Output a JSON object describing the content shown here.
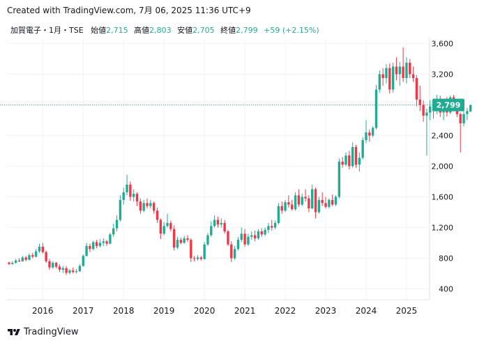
{
  "header": {
    "title": "Created with TradingView.com, 7月 06, 2025 11:36 UTC+9"
  },
  "legend": {
    "symbol": "加賀電子・1月・TSE",
    "open_label": "始値",
    "open": "2,715",
    "high_label": "高値",
    "high": "2,803",
    "low_label": "安値",
    "low": "2,705",
    "close_label": "終値",
    "close": "2,799",
    "change": "+59 (+2.15%)"
  },
  "footer": {
    "brand": "TradingView"
  },
  "colors": {
    "up": "#22ab94",
    "down": "#f23645",
    "grid": "#f0f3fa",
    "text": "#131722"
  },
  "chart_data": {
    "type": "candlestick",
    "interval": "monthly",
    "last_price_label": "2,799",
    "last_price": 2799,
    "y_ticks": [
      400,
      800,
      1200,
      1600,
      2000,
      2400,
      2800,
      3200,
      3600
    ],
    "y_tick_labels": [
      "400",
      "800",
      "1,200",
      "1,600",
      "2,000",
      "2,400",
      "2,800",
      "3,200",
      "3,600"
    ],
    "x_tick_labels": [
      "2016",
      "2017",
      "2018",
      "2019",
      "2020",
      "2021",
      "2022",
      "2023",
      "2024",
      "2025"
    ],
    "ylim": [
      200,
      3750
    ],
    "x_start": "2015-03",
    "candles": [
      [
        745,
        755,
        710,
        725
      ],
      [
        725,
        760,
        715,
        740
      ],
      [
        740,
        790,
        730,
        770
      ],
      [
        770,
        800,
        750,
        760
      ],
      [
        760,
        830,
        755,
        810
      ],
      [
        810,
        830,
        760,
        780
      ],
      [
        780,
        860,
        770,
        840
      ],
      [
        840,
        870,
        800,
        820
      ],
      [
        820,
        920,
        810,
        890
      ],
      [
        890,
        990,
        870,
        950
      ],
      [
        950,
        1000,
        860,
        880
      ],
      [
        880,
        900,
        740,
        760
      ],
      [
        760,
        790,
        650,
        680
      ],
      [
        680,
        760,
        660,
        740
      ],
      [
        740,
        750,
        670,
        690
      ],
      [
        690,
        720,
        620,
        650
      ],
      [
        650,
        700,
        610,
        670
      ],
      [
        670,
        700,
        580,
        610
      ],
      [
        610,
        660,
        590,
        640
      ],
      [
        640,
        680,
        600,
        620
      ],
      [
        620,
        660,
        600,
        630
      ],
      [
        630,
        720,
        620,
        700
      ],
      [
        700,
        850,
        690,
        830
      ],
      [
        830,
        1000,
        820,
        960
      ],
      [
        960,
        990,
        880,
        920
      ],
      [
        920,
        1030,
        900,
        1010
      ],
      [
        1010,
        1040,
        930,
        960
      ],
      [
        960,
        1050,
        940,
        1000
      ],
      [
        1000,
        1060,
        960,
        1020
      ],
      [
        1020,
        1040,
        960,
        990
      ],
      [
        990,
        1130,
        980,
        1110
      ],
      [
        1110,
        1250,
        1080,
        1190
      ],
      [
        1190,
        1360,
        1150,
        1300
      ],
      [
        1300,
        1620,
        1280,
        1560
      ],
      [
        1560,
        1720,
        1500,
        1660
      ],
      [
        1660,
        1890,
        1620,
        1760
      ],
      [
        1760,
        1800,
        1550,
        1600
      ],
      [
        1600,
        1700,
        1540,
        1640
      ],
      [
        1640,
        1660,
        1480,
        1540
      ],
      [
        1540,
        1580,
        1380,
        1420
      ],
      [
        1420,
        1560,
        1400,
        1520
      ],
      [
        1520,
        1580,
        1450,
        1480
      ],
      [
        1480,
        1560,
        1450,
        1520
      ],
      [
        1520,
        1540,
        1380,
        1420
      ],
      [
        1420,
        1460,
        1260,
        1300
      ],
      [
        1300,
        1320,
        1050,
        1120
      ],
      [
        1120,
        1270,
        1100,
        1220
      ],
      [
        1220,
        1380,
        1200,
        1260
      ],
      [
        1260,
        1290,
        1150,
        1180
      ],
      [
        1180,
        1230,
        900,
        940
      ],
      [
        940,
        1080,
        920,
        1040
      ],
      [
        1040,
        1070,
        980,
        1000
      ],
      [
        1000,
        1090,
        990,
        1060
      ],
      [
        1060,
        1100,
        1010,
        1040
      ],
      [
        1040,
        1060,
        750,
        800
      ],
      [
        800,
        830,
        760,
        790
      ],
      [
        790,
        840,
        770,
        810
      ],
      [
        810,
        830,
        770,
        790
      ],
      [
        790,
        1010,
        780,
        980
      ],
      [
        980,
        1130,
        960,
        1100
      ],
      [
        1100,
        1280,
        1080,
        1220
      ],
      [
        1220,
        1360,
        1200,
        1300
      ],
      [
        1300,
        1340,
        1200,
        1240
      ],
      [
        1240,
        1320,
        1200,
        1260
      ],
      [
        1260,
        1300,
        1120,
        1150
      ],
      [
        1150,
        1170,
        960,
        980
      ],
      [
        980,
        1020,
        750,
        800
      ],
      [
        800,
        960,
        780,
        920
      ],
      [
        920,
        1080,
        900,
        1040
      ],
      [
        1040,
        1200,
        1010,
        1120
      ],
      [
        1120,
        1180,
        950,
        980
      ],
      [
        980,
        1120,
        960,
        1080
      ],
      [
        1080,
        1150,
        1040,
        1100
      ],
      [
        1100,
        1160,
        1020,
        1060
      ],
      [
        1060,
        1180,
        1040,
        1150
      ],
      [
        1150,
        1190,
        1080,
        1110
      ],
      [
        1110,
        1200,
        1090,
        1170
      ],
      [
        1170,
        1260,
        1130,
        1220
      ],
      [
        1220,
        1300,
        1160,
        1200
      ],
      [
        1200,
        1290,
        1180,
        1260
      ],
      [
        1260,
        1520,
        1240,
        1480
      ],
      [
        1480,
        1540,
        1380,
        1420
      ],
      [
        1420,
        1560,
        1400,
        1530
      ],
      [
        1530,
        1620,
        1460,
        1500
      ],
      [
        1500,
        1560,
        1420,
        1440
      ],
      [
        1440,
        1660,
        1420,
        1620
      ],
      [
        1620,
        1700,
        1470,
        1500
      ],
      [
        1500,
        1640,
        1480,
        1600
      ],
      [
        1600,
        1700,
        1540,
        1580
      ],
      [
        1580,
        1620,
        1400,
        1450
      ],
      [
        1450,
        1760,
        1440,
        1700
      ],
      [
        1700,
        1720,
        1320,
        1400
      ],
      [
        1400,
        1600,
        1380,
        1560
      ],
      [
        1560,
        1660,
        1480,
        1520
      ],
      [
        1520,
        1600,
        1450,
        1470
      ],
      [
        1470,
        1580,
        1450,
        1560
      ],
      [
        1560,
        1630,
        1480,
        1500
      ],
      [
        1500,
        1620,
        1480,
        1600
      ],
      [
        1600,
        2100,
        1580,
        2060
      ],
      [
        2060,
        2120,
        1980,
        2020
      ],
      [
        2020,
        2180,
        2000,
        2140
      ],
      [
        2140,
        2200,
        1960,
        2000
      ],
      [
        2000,
        2310,
        1980,
        2250
      ],
      [
        2250,
        2280,
        1980,
        2020
      ],
      [
        2020,
        2180,
        1930,
        2110
      ],
      [
        2110,
        2380,
        2090,
        2340
      ],
      [
        2340,
        2600,
        2300,
        2440
      ],
      [
        2440,
        2480,
        2320,
        2400
      ],
      [
        2400,
        2520,
        2380,
        2500
      ],
      [
        2500,
        3060,
        2480,
        3000
      ],
      [
        3000,
        3250,
        2960,
        3200
      ],
      [
        3200,
        3280,
        3050,
        3150
      ],
      [
        3150,
        3330,
        3080,
        3280
      ],
      [
        3280,
        3340,
        2950,
        3000
      ],
      [
        3000,
        3350,
        2960,
        3300
      ],
      [
        3300,
        3420,
        3120,
        3200
      ],
      [
        3200,
        3360,
        3050,
        3300
      ],
      [
        3300,
        3550,
        3100,
        3150
      ],
      [
        3150,
        3420,
        3080,
        3350
      ],
      [
        3350,
        3400,
        3150,
        3200
      ],
      [
        3200,
        3300,
        3100,
        3150
      ],
      [
        3150,
        3190,
        2780,
        2870
      ],
      [
        2870,
        3050,
        2720,
        2800
      ],
      [
        2800,
        2860,
        2580,
        2660
      ],
      [
        2660,
        2750,
        2140,
        2700
      ],
      [
        2700,
        2860,
        2600,
        2780
      ],
      [
        2780,
        2880,
        2620,
        2720
      ],
      [
        2720,
        2930,
        2680,
        2880
      ],
      [
        2880,
        2920,
        2640,
        2700
      ],
      [
        2700,
        2850,
        2600,
        2800
      ],
      [
        2800,
        2900,
        2650,
        2700
      ],
      [
        2700,
        2920,
        2680,
        2900
      ],
      [
        2900,
        2930,
        2720,
        2750
      ],
      [
        2750,
        2800,
        2640,
        2680
      ],
      [
        2680,
        2700,
        2180,
        2560
      ],
      [
        2560,
        2720,
        2520,
        2680
      ],
      [
        2680,
        2760,
        2600,
        2720
      ],
      [
        2715,
        2803,
        2705,
        2799
      ]
    ]
  }
}
